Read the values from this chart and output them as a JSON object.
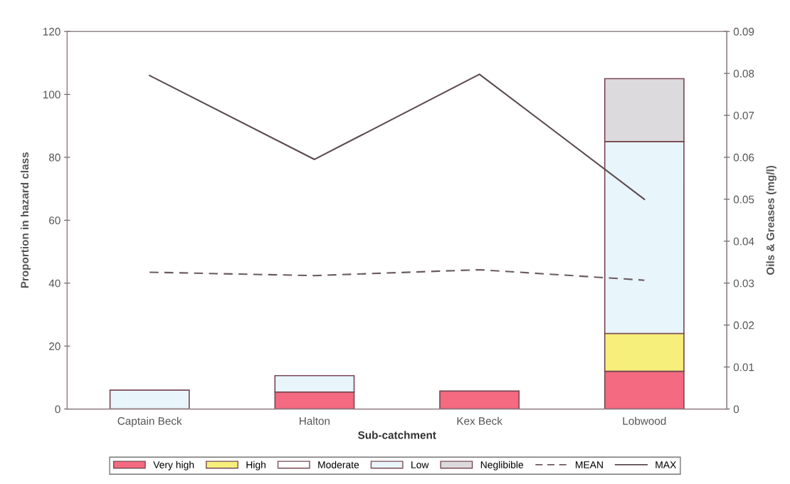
{
  "chart_data": {
    "type": "bar",
    "stacked": true,
    "xlabel": "Sub-catchment",
    "ylabel": "Proportion in hazard class",
    "y2label": "Oils & Greases (mg/l)",
    "categories": [
      "Captain Beck",
      "Halton",
      "Kex Beck",
      "Lobwood"
    ],
    "series": [
      {
        "name": "Very high",
        "color": "#f46a80",
        "values": [
          null,
          5.4,
          5.7,
          12
        ]
      },
      {
        "name": "High",
        "color": "#f6ef7c",
        "values": [
          null,
          null,
          null,
          12
        ]
      },
      {
        "name": "Moderate",
        "color": "#ffffff",
        "values": [
          null,
          null,
          null,
          null
        ]
      },
      {
        "name": "Low",
        "color": "#e8f5fb",
        "values": [
          6,
          5.2,
          null,
          61
        ]
      },
      {
        "name": "Neglibible",
        "color": "#dcdadc",
        "values": [
          null,
          null,
          null,
          20
        ]
      },
      {
        "name": "MEAN",
        "type": "line",
        "axis": "y2",
        "color": "#6a5a60",
        "line_style": "dashed",
        "values": [
          0.0326,
          0.0318,
          0.0332,
          0.0307
        ]
      },
      {
        "name": "MAX",
        "type": "line",
        "axis": "y2",
        "color": "#5a4a50",
        "line_style": "solid",
        "values": [
          0.0795,
          0.0595,
          0.0798,
          0.05
        ]
      }
    ],
    "ylim": [
      0,
      120
    ],
    "yticks": [
      0,
      20,
      40,
      60,
      80,
      100,
      120
    ],
    "y2lim": [
      0,
      0.09
    ],
    "y2ticks": [
      0,
      0.01,
      0.02,
      0.03,
      0.04,
      0.05,
      0.06,
      0.07,
      0.08,
      0.09
    ],
    "grid": false,
    "legend": "bottom",
    "marker": "none"
  }
}
